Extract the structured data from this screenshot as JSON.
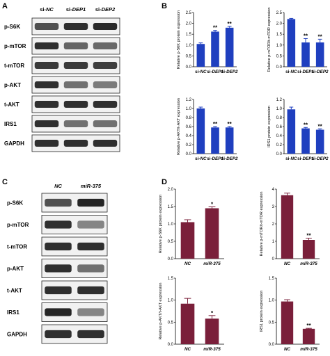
{
  "panels": {
    "A": {
      "letter": "A",
      "columns": [
        {
          "prefix": "si-",
          "name": "NC"
        },
        {
          "prefix": "si-",
          "name": "DEP1"
        },
        {
          "prefix": "si-",
          "name": "DEP2"
        }
      ],
      "rows": [
        {
          "label": "p-S6K",
          "bands": [
            0.7,
            0.85,
            0.88
          ]
        },
        {
          "label": "p-mTOR",
          "bands": [
            0.85,
            0.6,
            0.58
          ]
        },
        {
          "label": "t-mTOR",
          "bands": [
            0.8,
            0.8,
            0.78
          ]
        },
        {
          "label": "p-AKT",
          "bands": [
            0.85,
            0.55,
            0.5
          ]
        },
        {
          "label": "t-AKT",
          "bands": [
            0.85,
            0.85,
            0.85
          ]
        },
        {
          "label": "IRS1",
          "bands": [
            0.85,
            0.55,
            0.55
          ]
        },
        {
          "label": "GAPDH",
          "bands": [
            0.85,
            0.85,
            0.85
          ]
        }
      ]
    },
    "C": {
      "letter": "C",
      "columns": [
        {
          "prefix": "",
          "name": "NC"
        },
        {
          "prefix": "",
          "name": "miR-375"
        }
      ],
      "rows": [
        {
          "label": "p-S6K",
          "bands": [
            0.7,
            0.9
          ]
        },
        {
          "label": "p-mTOR",
          "bands": [
            0.85,
            0.45
          ]
        },
        {
          "label": "t-mTOR",
          "bands": [
            0.85,
            0.85
          ]
        },
        {
          "label": "p-AKT",
          "bands": [
            0.85,
            0.55
          ]
        },
        {
          "label": "t-AKT",
          "bands": [
            0.85,
            0.85
          ]
        },
        {
          "label": "IRS1",
          "bands": [
            0.9,
            0.45
          ]
        },
        {
          "label": "GAPDH",
          "bands": [
            0.85,
            0.85
          ]
        }
      ]
    },
    "B": {
      "letter": "B",
      "bar_color": "#1f3fbf"
    },
    "D": {
      "letter": "D",
      "bar_color": "#7a1f3a"
    }
  },
  "chart_data": [
    {
      "panel": "B",
      "type": "bar",
      "ylabel": "Relative p-S6K protein expression",
      "categories": [
        {
          "prefix": "si-",
          "name": "NC"
        },
        {
          "prefix": "si-",
          "name": "DEP1"
        },
        {
          "prefix": "si-",
          "name": "DEP2"
        }
      ],
      "values": [
        1.05,
        1.62,
        1.8
      ],
      "errors": [
        0.05,
        0.06,
        0.06
      ],
      "sig": [
        "",
        "**",
        "**"
      ],
      "ylim": [
        0,
        2.5
      ],
      "yticks": [
        "0.0",
        "0.5",
        "1.0",
        "1.5",
        "2.0",
        "2.5"
      ]
    },
    {
      "panel": "B",
      "type": "bar",
      "ylabel": "Relative p-mTOR/t-mTOR expression",
      "categories": [
        {
          "prefix": "si-",
          "name": "NC"
        },
        {
          "prefix": "si-",
          "name": "DEP1"
        },
        {
          "prefix": "si-",
          "name": "DEP2"
        }
      ],
      "values": [
        2.2,
        1.12,
        1.12
      ],
      "errors": [
        0.03,
        0.18,
        0.15
      ],
      "sig": [
        "",
        "**",
        "**"
      ],
      "ylim": [
        0,
        2.5
      ],
      "yticks": [
        "0.0",
        "0.5",
        "1.0",
        "1.5",
        "2.0",
        "2.5"
      ]
    },
    {
      "panel": "B",
      "type": "bar",
      "ylabel": "Relative p-AKT/t-AKT expression",
      "categories": [
        {
          "prefix": "si-",
          "name": "NC"
        },
        {
          "prefix": "si-",
          "name": "DEP1"
        },
        {
          "prefix": "si-",
          "name": "DEP2"
        }
      ],
      "values": [
        1.0,
        0.58,
        0.58
      ],
      "errors": [
        0.03,
        0.02,
        0.02
      ],
      "sig": [
        "",
        "**",
        "**"
      ],
      "ylim": [
        0,
        1.2
      ],
      "yticks": [
        "0.0",
        "0.2",
        "0.4",
        "0.6",
        "0.8",
        "1.0",
        "1.2"
      ]
    },
    {
      "panel": "B",
      "type": "bar",
      "ylabel": "IRS1 protein expression",
      "categories": [
        {
          "prefix": "si-",
          "name": "NC"
        },
        {
          "prefix": "si-",
          "name": "DEP1"
        },
        {
          "prefix": "si-",
          "name": "DEP2"
        }
      ],
      "values": [
        0.98,
        0.56,
        0.53
      ],
      "errors": [
        0.05,
        0.02,
        0.02
      ],
      "sig": [
        "",
        "**",
        "**"
      ],
      "ylim": [
        0,
        1.2
      ],
      "yticks": [
        "0.0",
        "0.2",
        "0.4",
        "0.6",
        "0.8",
        "1.0",
        "1.2"
      ]
    },
    {
      "panel": "D",
      "type": "bar",
      "ylabel": "Relative p-S6K protein expression",
      "categories": [
        {
          "prefix": "",
          "name": "NC"
        },
        {
          "prefix": "",
          "name": "miR-375"
        }
      ],
      "values": [
        1.05,
        1.45
      ],
      "errors": [
        0.07,
        0.04
      ],
      "sig": [
        "",
        "*"
      ],
      "ylim": [
        0,
        2.0
      ],
      "yticks": [
        "0.0",
        "0.5",
        "1.0",
        "1.5",
        "2.0"
      ]
    },
    {
      "panel": "D",
      "type": "bar",
      "ylabel": "Relative p-mTOR/t-mTOR expression",
      "categories": [
        {
          "prefix": "",
          "name": "NC"
        },
        {
          "prefix": "",
          "name": "miR-375"
        }
      ],
      "values": [
        3.65,
        1.08
      ],
      "errors": [
        0.12,
        0.1
      ],
      "sig": [
        "",
        "**"
      ],
      "ylim": [
        0,
        4
      ],
      "yticks": [
        "0",
        "1",
        "2",
        "3",
        "4"
      ]
    },
    {
      "panel": "D",
      "type": "bar",
      "ylabel": "Relative p-AKT/t-AKT expression",
      "categories": [
        {
          "prefix": "",
          "name": "NC"
        },
        {
          "prefix": "",
          "name": "miR-375"
        }
      ],
      "values": [
        0.92,
        0.58
      ],
      "errors": [
        0.12,
        0.07
      ],
      "sig": [
        "",
        "*"
      ],
      "ylim": [
        0,
        1.5
      ],
      "yticks": [
        "0.0",
        "0.5",
        "1.0",
        "1.5"
      ]
    },
    {
      "panel": "D",
      "type": "bar",
      "ylabel": "IRS1 protein expression",
      "categories": [
        {
          "prefix": "",
          "name": "NC"
        },
        {
          "prefix": "",
          "name": "miR-375"
        }
      ],
      "values": [
        0.97,
        0.35
      ],
      "errors": [
        0.04,
        0.01
      ],
      "sig": [
        "",
        "**"
      ],
      "ylim": [
        0,
        1.5
      ],
      "yticks": [
        "0.0",
        "0.5",
        "1.0",
        "1.5"
      ]
    }
  ]
}
